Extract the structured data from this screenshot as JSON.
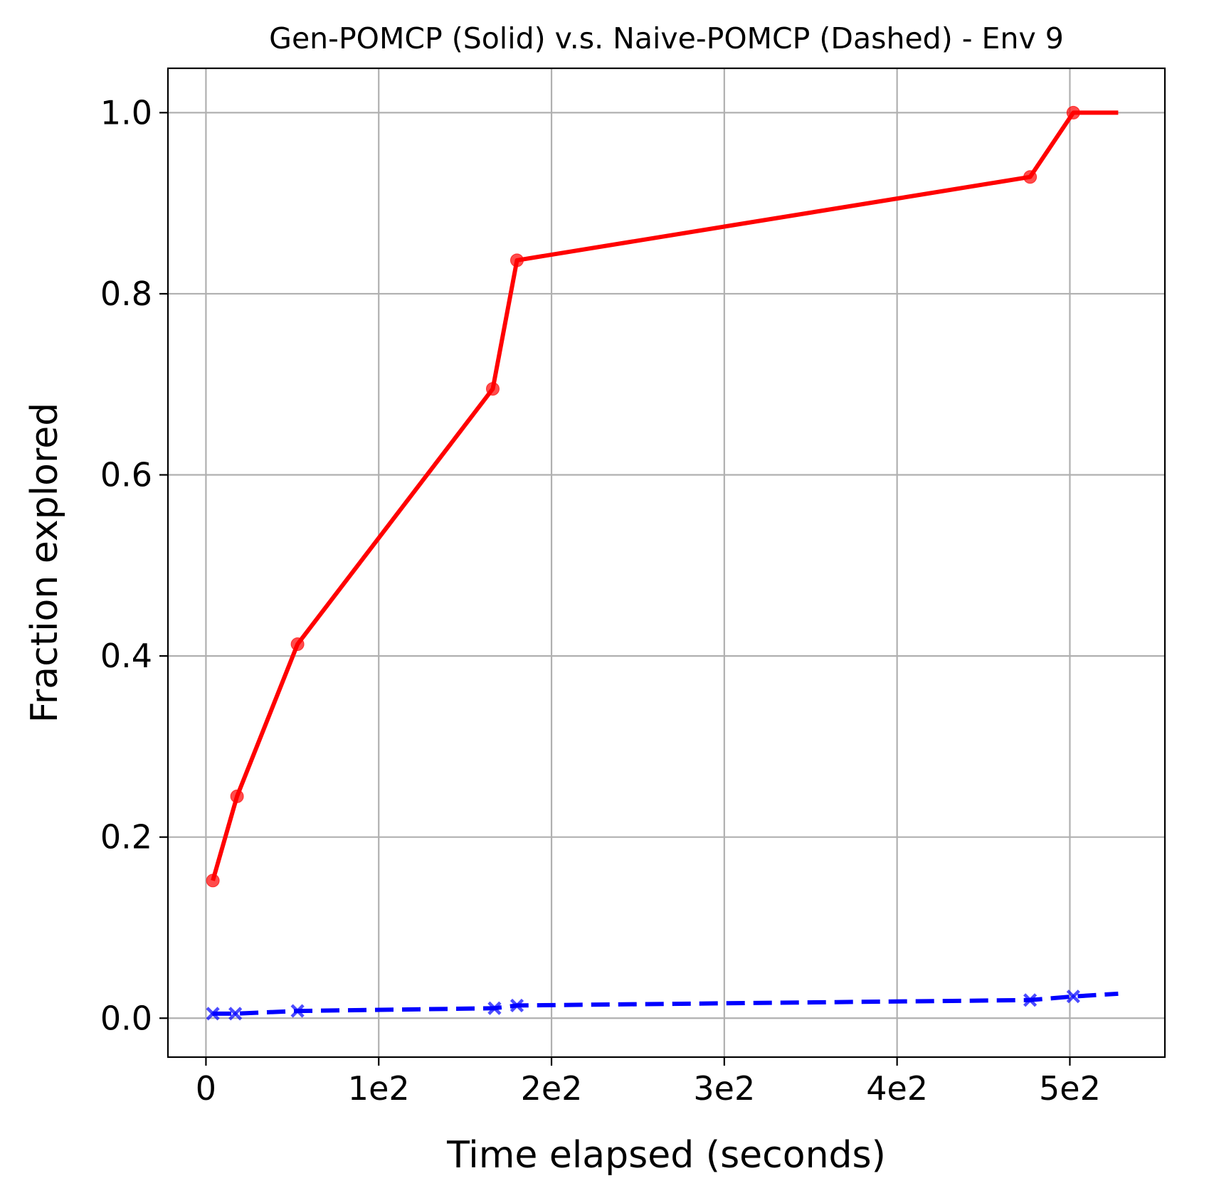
{
  "chart_data": {
    "type": "line",
    "title": "Gen-POMCP (Solid) v.s. Naive-POMCP (Dashed) - Env 9",
    "xlabel": "Time elapsed (seconds)",
    "ylabel": "Fraction explored",
    "xlim": [
      -22,
      555
    ],
    "ylim": [
      -0.043,
      1.049
    ],
    "grid": true,
    "x_ticks": [
      {
        "value": 0,
        "label": "0"
      },
      {
        "value": 100,
        "label": "1e2"
      },
      {
        "value": 200,
        "label": "2e2"
      },
      {
        "value": 300,
        "label": "3e2"
      },
      {
        "value": 400,
        "label": "4e2"
      },
      {
        "value": 500,
        "label": "5e2"
      }
    ],
    "y_ticks": [
      {
        "value": 0.0,
        "label": "0.0"
      },
      {
        "value": 0.2,
        "label": "0.2"
      },
      {
        "value": 0.4,
        "label": "0.4"
      },
      {
        "value": 0.6,
        "label": "0.6"
      },
      {
        "value": 0.8,
        "label": "0.8"
      },
      {
        "value": 1.0,
        "label": "1.0"
      }
    ],
    "series": [
      {
        "style": "solid",
        "marker": "circle",
        "color": "#ff0000",
        "x": [
          4,
          18,
          53,
          166,
          180,
          477,
          502,
          528
        ],
        "y": [
          0.152,
          0.245,
          0.413,
          0.695,
          0.837,
          0.929,
          1.0,
          1.0
        ],
        "marker_count": 7
      },
      {
        "style": "dashed",
        "marker": "x",
        "color": "#0000ff",
        "x": [
          4,
          17,
          53,
          167,
          180,
          477,
          502,
          528
        ],
        "y": [
          0.005,
          0.005,
          0.008,
          0.011,
          0.014,
          0.02,
          0.024,
          0.027
        ],
        "marker_count": 7
      }
    ]
  }
}
